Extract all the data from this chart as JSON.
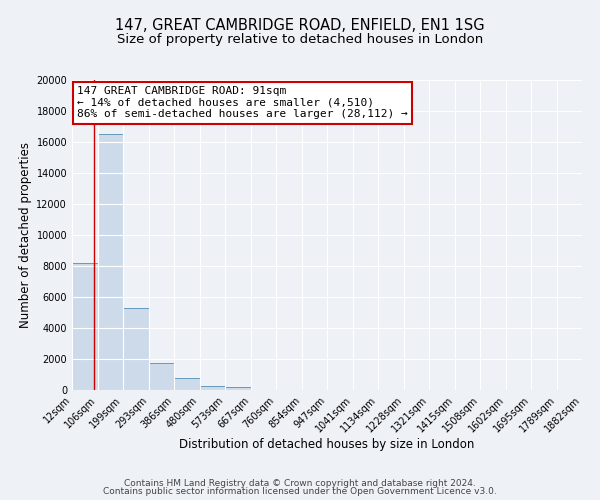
{
  "title": "147, GREAT CAMBRIDGE ROAD, ENFIELD, EN1 1SG",
  "subtitle": "Size of property relative to detached houses in London",
  "xlabel": "Distribution of detached houses by size in London",
  "ylabel": "Number of detached properties",
  "bar_edges": [
    12,
    106,
    199,
    293,
    386,
    480,
    573,
    667,
    760,
    854,
    947,
    1041,
    1134,
    1228,
    1321,
    1415,
    1508,
    1602,
    1695,
    1789,
    1882
  ],
  "bar_heights": [
    8200,
    16500,
    5300,
    1750,
    780,
    290,
    180,
    0,
    0,
    0,
    0,
    0,
    0,
    0,
    0,
    0,
    0,
    0,
    0,
    0
  ],
  "bar_color": "#cddaea",
  "bar_edgecolor": "#6699bb",
  "vline_x": 91,
  "vline_color": "#cc0000",
  "annotation_text_line1": "147 GREAT CAMBRIDGE ROAD: 91sqm",
  "annotation_text_line2": "← 14% of detached houses are smaller (4,510)",
  "annotation_text_line3": "86% of semi-detached houses are larger (28,112) →",
  "ylim": [
    0,
    20000
  ],
  "yticks": [
    0,
    2000,
    4000,
    6000,
    8000,
    10000,
    12000,
    14000,
    16000,
    18000,
    20000
  ],
  "tick_labels": [
    "12sqm",
    "106sqm",
    "199sqm",
    "293sqm",
    "386sqm",
    "480sqm",
    "573sqm",
    "667sqm",
    "760sqm",
    "854sqm",
    "947sqm",
    "1041sqm",
    "1134sqm",
    "1228sqm",
    "1321sqm",
    "1415sqm",
    "1508sqm",
    "1602sqm",
    "1695sqm",
    "1789sqm",
    "1882sqm"
  ],
  "footer_line1": "Contains HM Land Registry data © Crown copyright and database right 2024.",
  "footer_line2": "Contains public sector information licensed under the Open Government Licence v3.0.",
  "bg_color": "#eef2f7",
  "plot_bg_color": "#eef2f7",
  "grid_color": "#ffffff",
  "title_fontsize": 10.5,
  "subtitle_fontsize": 9.5,
  "axis_label_fontsize": 8.5,
  "tick_fontsize": 7,
  "annotation_fontsize": 8,
  "footer_fontsize": 6.5
}
